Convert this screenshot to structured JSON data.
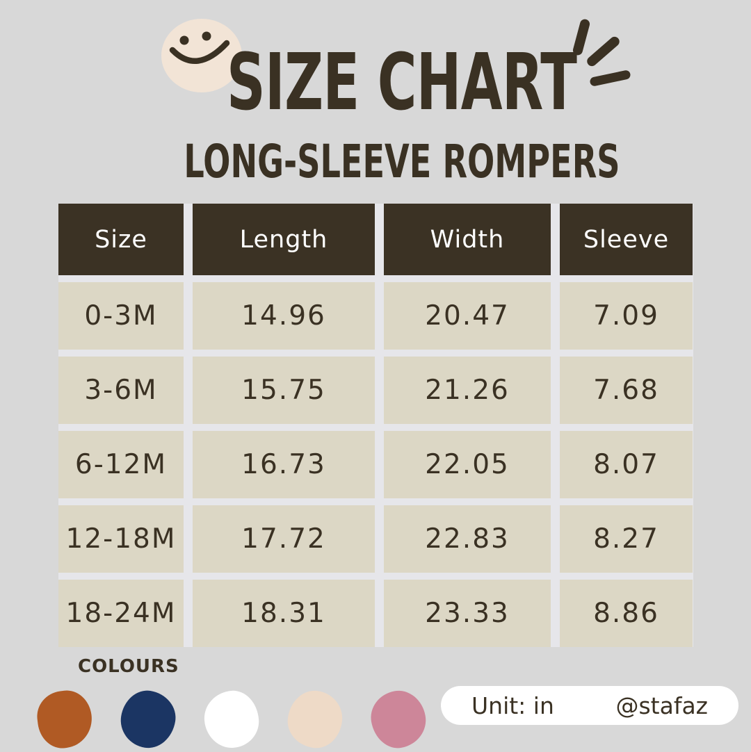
{
  "page": {
    "background_color": "#d8d8d8",
    "ink_color": "#3a3123"
  },
  "header": {
    "title": "SIZE CHART",
    "subtitle": "LONG-SLEEVE ROMPERS",
    "icons": [
      "smiley-face-icon",
      "sparkle-rays-icon"
    ],
    "smiley_circle_color": "#f2e4d6"
  },
  "chart_data": {
    "type": "table",
    "title": "SIZE CHART",
    "subtitle": "LONG-SLEEVE ROMPERS",
    "unit": "in",
    "columns": [
      "Size",
      "Length",
      "Width",
      "Sleeve"
    ],
    "rows": [
      [
        "0-3M",
        "14.96",
        "20.47",
        "7.09"
      ],
      [
        "3-6M",
        "15.75",
        "21.26",
        "7.68"
      ],
      [
        "6-12M",
        "16.73",
        "22.05",
        "8.07"
      ],
      [
        "12-18M",
        "17.72",
        "22.83",
        "8.27"
      ],
      [
        "18-24M",
        "18.31",
        "23.33",
        "8.86"
      ]
    ],
    "header_bg": "#3b3224",
    "header_text_color": "#ffffff",
    "cell_bg": "#dcd7c5",
    "cell_text_color": "#3a3123"
  },
  "colours": {
    "label": "COLOURS",
    "swatches": [
      {
        "name": "rust",
        "hex": "#b05a24"
      },
      {
        "name": "navy",
        "hex": "#1b3563"
      },
      {
        "name": "white",
        "hex": "#ffffff"
      },
      {
        "name": "cream",
        "hex": "#eedac7"
      },
      {
        "name": "pink",
        "hex": "#cd8699"
      }
    ]
  },
  "footer": {
    "unit_label": "Unit: in",
    "handle": "@stafaz"
  }
}
